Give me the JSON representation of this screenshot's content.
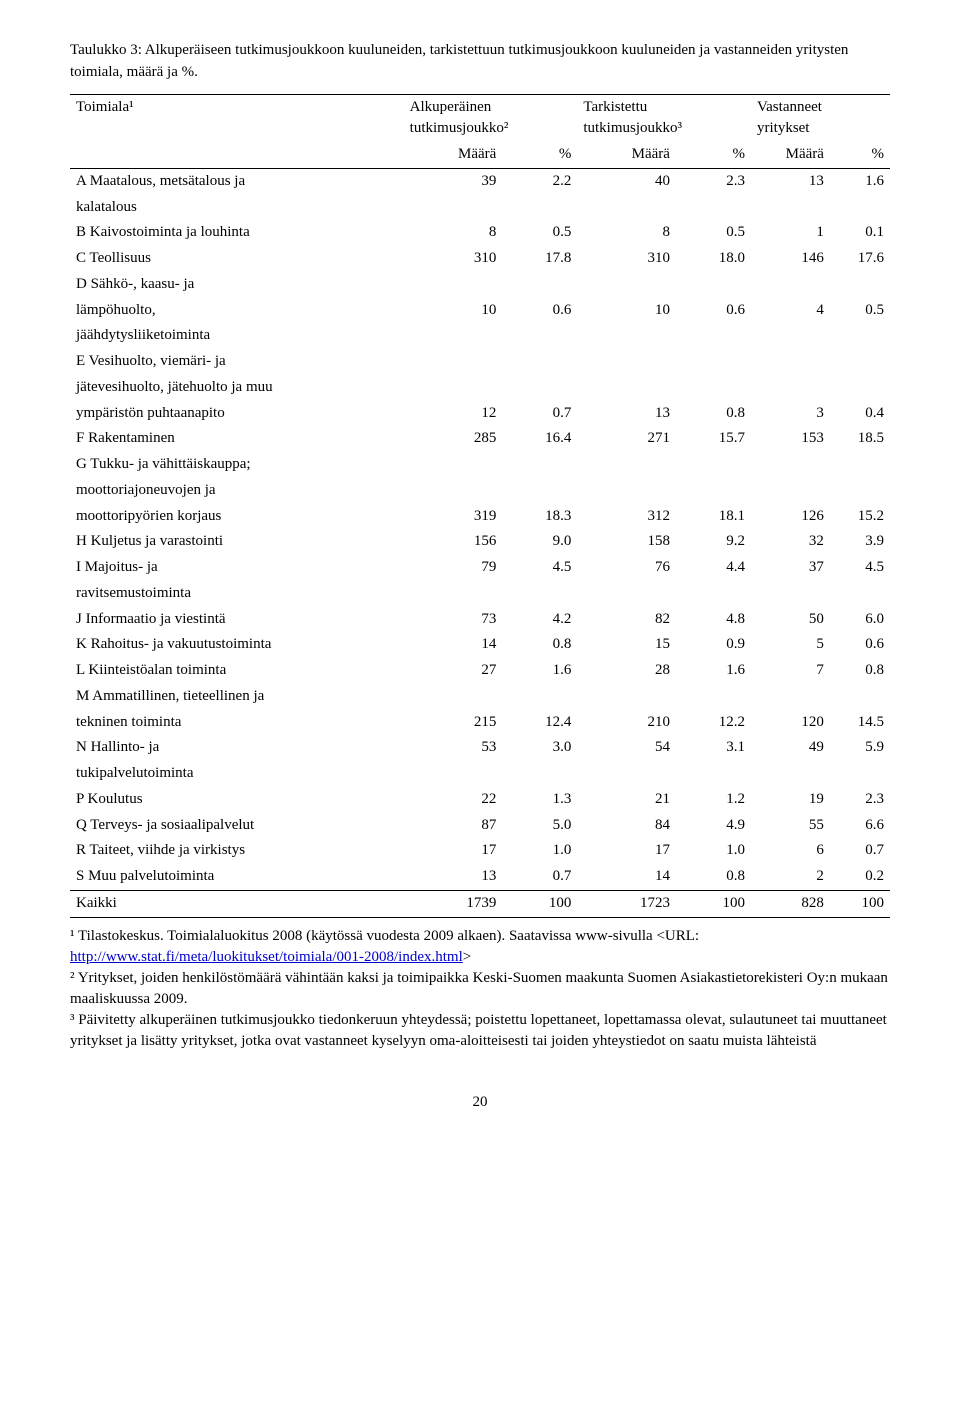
{
  "caption": "Taulukko 3: Alkuperäiseen tutkimusjoukkoon kuuluneiden, tarkistettuun tutkimusjoukkoon kuuluneiden ja vastanneiden yritysten toimiala, määrä ja %.",
  "header": {
    "col0": "Toimiala¹",
    "g1_line1": "Alkuperäinen",
    "g1_line2": "tutkimusjoukko²",
    "g2_line1": "Tarkistettu",
    "g2_line2": "tutkimusjoukko³",
    "g3_line1": "Vastanneet",
    "g3_line2": "yritykset",
    "maara": "Määrä",
    "pct": "%"
  },
  "rows": [
    {
      "label_l1": "A Maatalous, metsätalous ja",
      "label_l2": "kalatalous",
      "n1": "39",
      "p1": "2.2",
      "n2": "40",
      "p2": "2.3",
      "n3": "13",
      "p3": "1.6"
    },
    {
      "label_l1": "B Kaivostoiminta ja louhinta",
      "n1": "8",
      "p1": "0.5",
      "n2": "8",
      "p2": "0.5",
      "n3": "1",
      "p3": "0.1"
    },
    {
      "label_l1": "C Teollisuus",
      "n1": "310",
      "p1": "17.8",
      "n2": "310",
      "p2": "18.0",
      "n3": "146",
      "p3": "17.6"
    },
    {
      "label_l1": "D Sähkö-, kaasu- ja",
      "label_l2": "lämpöhuolto,",
      "label_l3": "jäähdytysliiketoiminta",
      "n1": "10",
      "p1": "0.6",
      "n2": "10",
      "p2": "0.6",
      "n3": "4",
      "p3": "0.5",
      "value_row": 1
    },
    {
      "label_l1": "E Vesihuolto, viemäri- ja",
      "label_l2": "jätevesihuolto, jätehuolto ja muu",
      "label_l3": "ympäristön puhtaanapito",
      "n1": "12",
      "p1": "0.7",
      "n2": "13",
      "p2": "0.8",
      "n3": "3",
      "p3": "0.4",
      "value_row": 2
    },
    {
      "label_l1": "F Rakentaminen",
      "n1": "285",
      "p1": "16.4",
      "n2": "271",
      "p2": "15.7",
      "n3": "153",
      "p3": "18.5"
    },
    {
      "label_l1": "G Tukku- ja vähittäiskauppa;",
      "label_l2": "moottoriajoneuvojen ja",
      "label_l3": "moottoripyörien korjaus",
      "n1": "319",
      "p1": "18.3",
      "n2": "312",
      "p2": "18.1",
      "n3": "126",
      "p3": "15.2",
      "value_row": 2
    },
    {
      "label_l1": "H Kuljetus ja varastointi",
      "n1": "156",
      "p1": "9.0",
      "n2": "158",
      "p2": "9.2",
      "n3": "32",
      "p3": "3.9"
    },
    {
      "label_l1": "I Majoitus- ja",
      "label_l2": "ravitsemustoiminta",
      "n1": "79",
      "p1": "4.5",
      "n2": "76",
      "p2": "4.4",
      "n3": "37",
      "p3": "4.5"
    },
    {
      "label_l1": "J Informaatio ja viestintä",
      "n1": "73",
      "p1": "4.2",
      "n2": "82",
      "p2": "4.8",
      "n3": "50",
      "p3": "6.0"
    },
    {
      "label_l1": "K Rahoitus- ja vakuutustoiminta",
      "n1": "14",
      "p1": "0.8",
      "n2": "15",
      "p2": "0.9",
      "n3": "5",
      "p3": "0.6"
    },
    {
      "label_l1": "L Kiinteistöalan toiminta",
      "n1": "27",
      "p1": "1.6",
      "n2": "28",
      "p2": "1.6",
      "n3": "7",
      "p3": "0.8"
    },
    {
      "label_l1": "M Ammatillinen, tieteellinen ja",
      "label_l2": "tekninen toiminta",
      "n1": "215",
      "p1": "12.4",
      "n2": "210",
      "p2": "12.2",
      "n3": "120",
      "p3": "14.5",
      "value_row": 1
    },
    {
      "label_l1": "N Hallinto- ja",
      "label_l2": "tukipalvelutoiminta",
      "n1": "53",
      "p1": "3.0",
      "n2": "54",
      "p2": "3.1",
      "n3": "49",
      "p3": "5.9"
    },
    {
      "label_l1": "P Koulutus",
      "n1": "22",
      "p1": "1.3",
      "n2": "21",
      "p2": "1.2",
      "n3": "19",
      "p3": "2.3"
    },
    {
      "label_l1": "Q Terveys- ja sosiaalipalvelut",
      "n1": "87",
      "p1": "5.0",
      "n2": "84",
      "p2": "4.9",
      "n3": "55",
      "p3": "6.6"
    },
    {
      "label_l1": "R Taiteet, viihde ja virkistys",
      "n1": "17",
      "p1": "1.0",
      "n2": "17",
      "p2": "1.0",
      "n3": "6",
      "p3": "0.7"
    },
    {
      "label_l1": "S Muu palvelutoiminta",
      "n1": "13",
      "p1": "0.7",
      "n2": "14",
      "p2": "0.8",
      "n3": "2",
      "p3": "0.2"
    }
  ],
  "total": {
    "label": "Kaikki",
    "n1": "1739",
    "p1": "100",
    "n2": "1723",
    "p2": "100",
    "n3": "828",
    "p3": "100"
  },
  "footnotes": {
    "f1a": "¹ Tilastokeskus. Toimialaluokitus 2008 (käytössä vuodesta 2009 alkaen). Saatavissa www-sivulla <URL: ",
    "f1link": "http://www.stat.fi/meta/luokitukset/toimiala/001-2008/index.html",
    "f1b": ">",
    "f2": "² Yritykset, joiden henkilöstömäärä vähintään kaksi ja toimipaikka Keski-Suomen maakunta Suomen Asiakastietorekisteri Oy:n mukaan maaliskuussa 2009.",
    "f3": "³ Päivitetty alkuperäinen tutkimusjoukko tiedonkeruun yhteydessä; poistettu lopettaneet, lopettamassa olevat, sulautuneet tai muuttaneet yritykset ja lisätty yritykset, jotka ovat vastanneet kyselyyn oma-aloitteisesti tai joiden yhteystiedot on saatu muista lähteistä"
  },
  "page_number": "20"
}
